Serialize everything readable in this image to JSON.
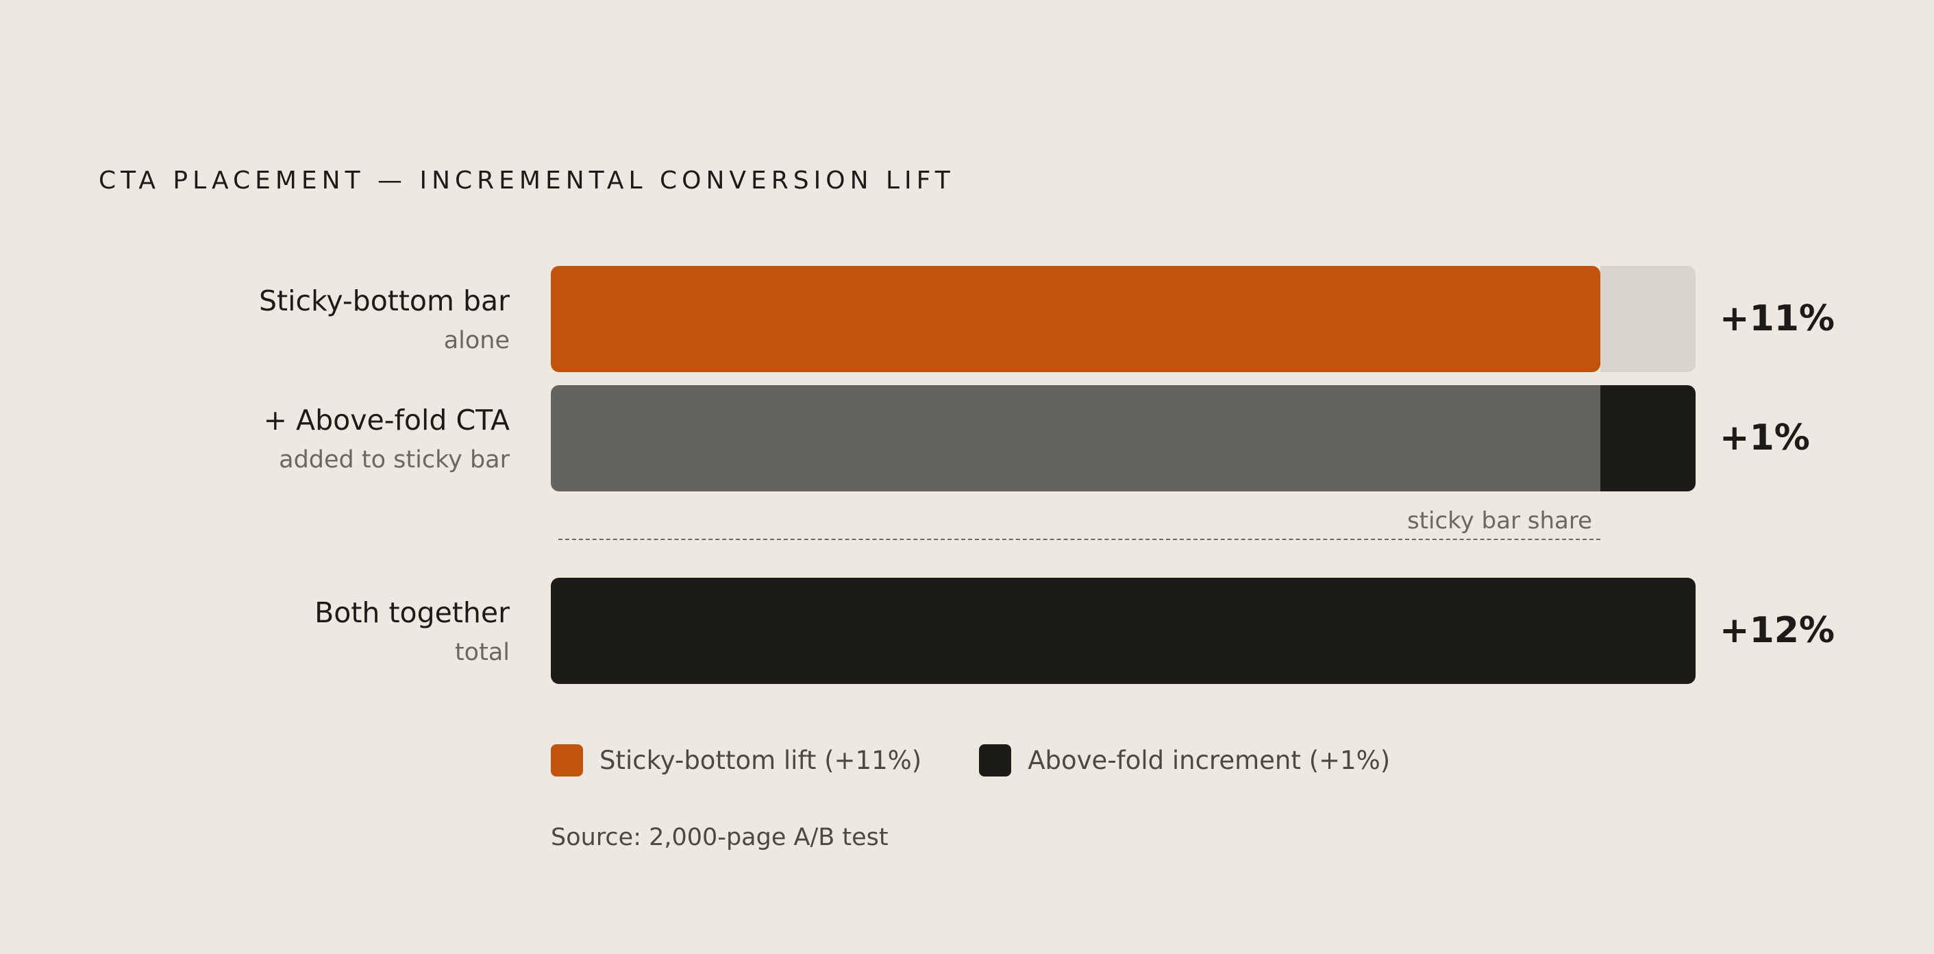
{
  "chart_data": {
    "type": "bar",
    "orientation": "horizontal",
    "stacked": true,
    "title": "CTA PLACEMENT — INCREMENTAL CONVERSION LIFT",
    "xlim": [
      0,
      12
    ],
    "rows": [
      {
        "label": "Sticky-bottom bar",
        "sublabel": "alone",
        "value_label": "+11%",
        "segments": [
          {
            "series": "sticky",
            "value": 11,
            "color": "#c0540c"
          },
          {
            "series": "remainder",
            "value": 1,
            "color": "#d8d3cb"
          }
        ]
      },
      {
        "label": "+ Above-fold CTA",
        "sublabel": "added to sticky bar",
        "value_label": "+1%",
        "segments": [
          {
            "series": "sticky-share",
            "value": 11,
            "color": "#65635e"
          },
          {
            "series": "above-fold",
            "value": 1,
            "color": "#1c1b18"
          }
        ]
      },
      {
        "label": "Both together",
        "sublabel": "total",
        "value_label": "+12%",
        "segments": [
          {
            "series": "total",
            "value": 12,
            "color": "#1c1b18"
          }
        ]
      }
    ],
    "annotation": {
      "text": "sticky bar share",
      "value": 11
    },
    "legend": [
      {
        "label": "Sticky-bottom lift (+11%)",
        "color": "#c0540c"
      },
      {
        "label": "Above-fold increment (+1%)",
        "color": "#1c1b18"
      }
    ],
    "legend_position": "bottom-left",
    "grid": false
  },
  "source": "Source: 2,000-page A/B test"
}
